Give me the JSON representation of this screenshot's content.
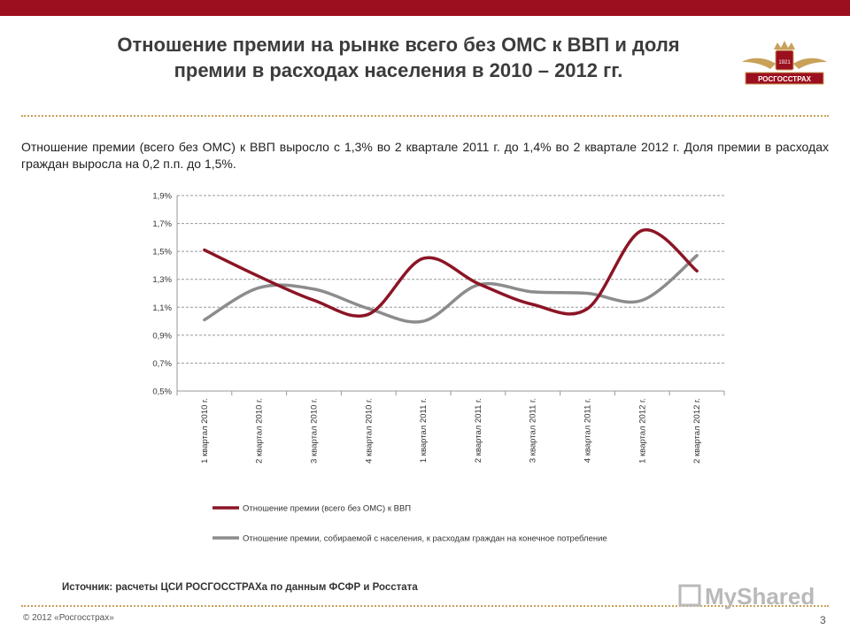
{
  "header": {
    "title_line1": "Отношение премии на рынке всего без ОМС к ВВП и доля",
    "title_line2": "премии в расходах населения в 2010 – 2012 гг.",
    "logo_year": "1921",
    "logo_name": "РОСГОССТРАХ"
  },
  "intro_text": "Отношение премии (всего без ОМС) к ВВП выросло с 1,3% во 2 квартале 2011 г. до 1,4% во 2 квартале 2012 г. Доля премии в расходах граждан выросла на 0,2 п.п. до 1,5%.",
  "colors": {
    "brand": "#9c0f1f",
    "series1": "#8b1525",
    "series2": "#8c8c8c",
    "dots": "#c8a15a"
  },
  "chart_data": {
    "type": "line",
    "categories": [
      "1 квартал 2010 г.",
      "2 квартал 2010 г.",
      "3 квартал 2010 г.",
      "4 квартал 2010 г.",
      "1 квартал 2011 г.",
      "2 квартал 2011 г.",
      "3 квартал 2011 г.",
      "4 квартал 2011 г.",
      "1 квартал 2012 г.",
      "2 квартал 2012 г."
    ],
    "series": [
      {
        "name": "Отношение премии (всего без ОМС) к ВВП",
        "values": [
          1.51,
          1.32,
          1.15,
          1.05,
          1.45,
          1.27,
          1.12,
          1.09,
          1.65,
          1.36
        ]
      },
      {
        "name": "Отношение премии, собираемой с населения, к расходам граждан на конечное потребление",
        "values": [
          1.01,
          1.24,
          1.23,
          1.09,
          1.0,
          1.26,
          1.21,
          1.2,
          1.15,
          1.47
        ]
      }
    ],
    "ylim": [
      0.5,
      1.9
    ],
    "yticks": [
      0.5,
      0.7,
      0.9,
      1.1,
      1.3,
      1.5,
      1.7,
      1.9
    ],
    "ytick_labels": [
      "0,5%",
      "0,7%",
      "0,9%",
      "1,1%",
      "1,3%",
      "1,5%",
      "1,7%",
      "1,9%"
    ],
    "grid": true,
    "legend_position": "bottom"
  },
  "source_text": "Источник: расчеты ЦСИ РОСГОССТРАХа по данным ФСФР и Росстата",
  "footer": {
    "copyright": "© 2012 «Росгосстрах»",
    "page_number": "3"
  },
  "watermark_text": "MyShared"
}
